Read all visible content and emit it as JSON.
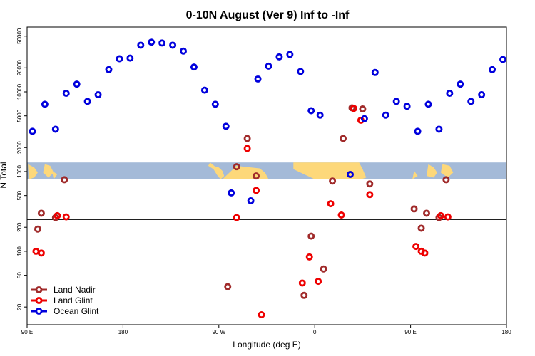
{
  "chart_data": {
    "type": "scatter",
    "title": "0-10N August (Ver 9)   Inf to -Inf",
    "xlabel": "Longitude (deg E)",
    "ylabel": "N Total",
    "y_scale": "log",
    "xlim": [
      0,
      270
    ],
    "ylim": [
      12,
      65000
    ],
    "x_ticks": [
      {
        "value": 0,
        "label": "90 E"
      },
      {
        "value": 54,
        "label": "180"
      },
      {
        "value": 108,
        "label": "90 W"
      },
      {
        "value": 162,
        "label": "0"
      },
      {
        "value": 216,
        "label": "90 E"
      },
      {
        "value": 270,
        "label": "180"
      }
    ],
    "y_ticks": [
      {
        "value": 20,
        "label": "20"
      },
      {
        "value": 50,
        "label": "50"
      },
      {
        "value": 100,
        "label": "100"
      },
      {
        "value": 200,
        "label": "200"
      },
      {
        "value": 500,
        "label": "500"
      },
      {
        "value": 1000,
        "label": "1000"
      },
      {
        "value": 2000,
        "label": "2000"
      },
      {
        "value": 5000,
        "label": "5000"
      },
      {
        "value": 10000,
        "label": "10000"
      },
      {
        "value": 20000,
        "label": "20000"
      },
      {
        "value": 50000,
        "label": "50000"
      }
    ],
    "reference_line_y": 250,
    "map_band": {
      "y_min": 800,
      "y_max": 1300,
      "color": "#a4bad8",
      "land_color": "#fdd87a"
    },
    "colors": {
      "land_nadir": "#a02a2a",
      "land_glint": "#ee0000",
      "ocean_glint": "#0000dd"
    },
    "series": [
      {
        "name": "Land Nadir",
        "color": "#a02a2a",
        "points": [
          {
            "x": 6,
            "y": 190
          },
          {
            "x": 8,
            "y": 300
          },
          {
            "x": 16,
            "y": 265
          },
          {
            "x": 21,
            "y": 790
          },
          {
            "x": 113,
            "y": 36
          },
          {
            "x": 118,
            "y": 1150
          },
          {
            "x": 124,
            "y": 2600
          },
          {
            "x": 129,
            "y": 880
          },
          {
            "x": 156,
            "y": 28
          },
          {
            "x": 160,
            "y": 155
          },
          {
            "x": 167,
            "y": 60
          },
          {
            "x": 172,
            "y": 760
          },
          {
            "x": 178,
            "y": 2600
          },
          {
            "x": 183,
            "y": 6300
          },
          {
            "x": 189,
            "y": 6100
          },
          {
            "x": 193,
            "y": 700
          },
          {
            "x": 218,
            "y": 340
          },
          {
            "x": 222,
            "y": 195
          },
          {
            "x": 225,
            "y": 300
          },
          {
            "x": 232,
            "y": 265
          },
          {
            "x": 236,
            "y": 790
          }
        ]
      },
      {
        "name": "Land Glint",
        "color": "#ee0000",
        "points": [
          {
            "x": 5,
            "y": 100
          },
          {
            "x": 8,
            "y": 95
          },
          {
            "x": 17,
            "y": 280
          },
          {
            "x": 22,
            "y": 270
          },
          {
            "x": 118,
            "y": 265
          },
          {
            "x": 124,
            "y": 1950
          },
          {
            "x": 129,
            "y": 580
          },
          {
            "x": 132,
            "y": 16
          },
          {
            "x": 155,
            "y": 40
          },
          {
            "x": 159,
            "y": 85
          },
          {
            "x": 164,
            "y": 42
          },
          {
            "x": 171,
            "y": 395
          },
          {
            "x": 177,
            "y": 285
          },
          {
            "x": 184,
            "y": 6200
          },
          {
            "x": 188,
            "y": 4400
          },
          {
            "x": 193,
            "y": 515
          },
          {
            "x": 219,
            "y": 115
          },
          {
            "x": 222,
            "y": 100
          },
          {
            "x": 224,
            "y": 95
          },
          {
            "x": 233,
            "y": 280
          },
          {
            "x": 237,
            "y": 270
          }
        ]
      },
      {
        "name": "Ocean Glint",
        "color": "#0000dd",
        "points": [
          {
            "x": 3,
            "y": 3200
          },
          {
            "x": 10,
            "y": 7000
          },
          {
            "x": 16,
            "y": 3400
          },
          {
            "x": 22,
            "y": 9600
          },
          {
            "x": 28,
            "y": 12500
          },
          {
            "x": 34,
            "y": 7600
          },
          {
            "x": 40,
            "y": 9200
          },
          {
            "x": 46,
            "y": 19000
          },
          {
            "x": 52,
            "y": 26000
          },
          {
            "x": 58,
            "y": 26500
          },
          {
            "x": 64,
            "y": 38500
          },
          {
            "x": 70,
            "y": 42000
          },
          {
            "x": 76,
            "y": 41000
          },
          {
            "x": 82,
            "y": 38500
          },
          {
            "x": 88,
            "y": 32500
          },
          {
            "x": 94,
            "y": 20500
          },
          {
            "x": 100,
            "y": 10500
          },
          {
            "x": 106,
            "y": 7000
          },
          {
            "x": 112,
            "y": 3700
          },
          {
            "x": 115,
            "y": 540
          },
          {
            "x": 126,
            "y": 430
          },
          {
            "x": 130,
            "y": 14500
          },
          {
            "x": 136,
            "y": 21000
          },
          {
            "x": 142,
            "y": 27500
          },
          {
            "x": 148,
            "y": 29500
          },
          {
            "x": 154,
            "y": 18000
          },
          {
            "x": 160,
            "y": 5800
          },
          {
            "x": 165,
            "y": 5100
          },
          {
            "x": 182,
            "y": 920
          },
          {
            "x": 190,
            "y": 4600
          },
          {
            "x": 196,
            "y": 17500
          },
          {
            "x": 202,
            "y": 5100
          },
          {
            "x": 208,
            "y": 7600
          },
          {
            "x": 214,
            "y": 6600
          },
          {
            "x": 220,
            "y": 3200
          },
          {
            "x": 226,
            "y": 7000
          },
          {
            "x": 232,
            "y": 3400
          },
          {
            "x": 238,
            "y": 9600
          },
          {
            "x": 244,
            "y": 12500
          },
          {
            "x": 250,
            "y": 7600
          },
          {
            "x": 256,
            "y": 9200
          },
          {
            "x": 262,
            "y": 19000
          },
          {
            "x": 268,
            "y": 25500
          }
        ]
      }
    ],
    "legend": {
      "position": "bottom-left",
      "entries": [
        {
          "label": "Land Nadir",
          "color": "#a02a2a"
        },
        {
          "label": "Land Glint",
          "color": "#ee0000"
        },
        {
          "label": "Ocean Glint",
          "color": "#0000dd"
        }
      ]
    }
  }
}
